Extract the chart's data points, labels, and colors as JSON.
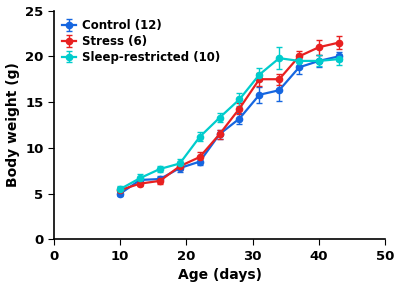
{
  "title": "",
  "xlabel": "Age (days)",
  "ylabel": "Body weight (g)",
  "xlim": [
    0,
    50
  ],
  "ylim": [
    0,
    25
  ],
  "xticks": [
    0,
    10,
    20,
    30,
    40,
    50
  ],
  "yticks": [
    0,
    5,
    10,
    15,
    20,
    25
  ],
  "series": [
    {
      "label": "Control (12)",
      "color": "#1566E0",
      "x": [
        10,
        13,
        16,
        19,
        22,
        25,
        28,
        31,
        34,
        37,
        40,
        43
      ],
      "y": [
        5.0,
        6.5,
        6.6,
        7.8,
        8.5,
        11.5,
        13.2,
        15.8,
        16.3,
        18.8,
        19.5,
        20.0
      ],
      "yerr": [
        0.2,
        0.3,
        0.3,
        0.4,
        0.4,
        0.5,
        0.6,
        0.9,
        1.2,
        0.7,
        0.7,
        0.5
      ]
    },
    {
      "label": "Stress (6)",
      "color": "#E82020",
      "x": [
        10,
        13,
        16,
        19,
        22,
        25,
        28,
        31,
        34,
        37,
        40,
        43
      ],
      "y": [
        5.4,
        6.1,
        6.4,
        8.0,
        9.0,
        11.5,
        14.3,
        17.5,
        17.5,
        20.0,
        21.0,
        21.5
      ],
      "yerr": [
        0.3,
        0.3,
        0.3,
        0.4,
        0.5,
        0.5,
        0.6,
        0.7,
        0.6,
        0.6,
        0.8,
        0.7
      ]
    },
    {
      "label": "Sleep-restricted (10)",
      "color": "#00CCCC",
      "x": [
        10,
        13,
        16,
        19,
        22,
        25,
        28,
        31,
        34,
        37,
        40,
        43
      ],
      "y": [
        5.5,
        6.7,
        7.7,
        8.3,
        11.2,
        13.3,
        15.3,
        18.0,
        19.8,
        19.5,
        19.5,
        19.7
      ],
      "yerr": [
        0.3,
        0.4,
        0.3,
        0.5,
        0.5,
        0.5,
        0.7,
        0.7,
        1.2,
        0.8,
        0.6,
        0.6
      ]
    }
  ],
  "legend_fontsize": 8.5,
  "axis_label_fontsize": 10,
  "tick_fontsize": 9.5,
  "linewidth": 1.6,
  "markersize": 4.5,
  "marker": "o",
  "background_color": "#FFFFFF",
  "capsize": 2.5,
  "elinewidth": 1.0
}
